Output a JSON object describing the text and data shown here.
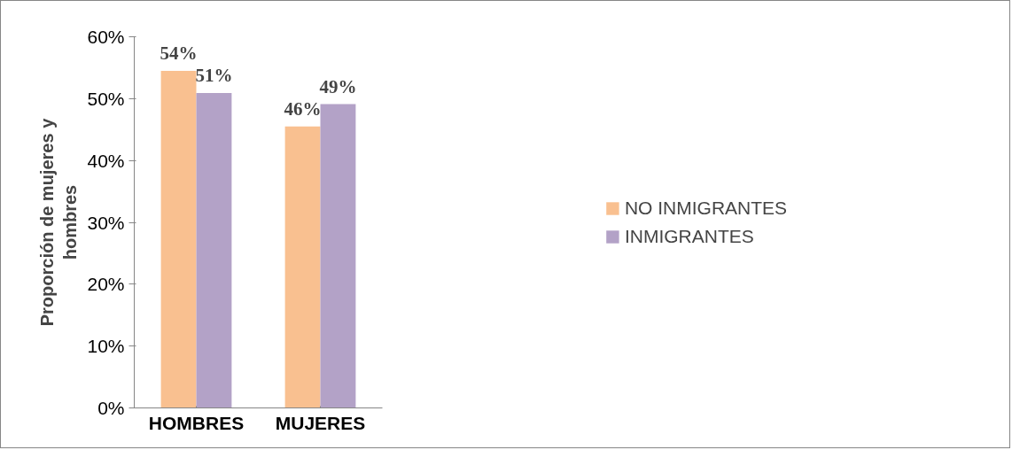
{
  "chart_data": {
    "type": "bar",
    "ylabel": "Proporción de mujeres y hombres",
    "categories": [
      "HOMBRES",
      "MUJERES"
    ],
    "series": [
      {
        "name": "NO INMIGRANTES",
        "color": "#f9c090",
        "values": [
          54.5,
          45.5
        ],
        "value_labels": [
          "54%",
          "46%"
        ]
      },
      {
        "name": "INMIGRANTES",
        "color": "#b3a2c7",
        "values": [
          50.9,
          49.1
        ],
        "value_labels": [
          "51%",
          "49%"
        ]
      }
    ],
    "ylim": [
      0,
      60
    ],
    "yticks": [
      {
        "value": 0,
        "label": "0%"
      },
      {
        "value": 10,
        "label": "10%"
      },
      {
        "value": 20,
        "label": "20%"
      },
      {
        "value": 30,
        "label": "30%"
      },
      {
        "value": 40,
        "label": "40%"
      },
      {
        "value": 50,
        "label": "50%"
      },
      {
        "value": 60,
        "label": "60%"
      }
    ],
    "grid": false,
    "legend": "right"
  }
}
